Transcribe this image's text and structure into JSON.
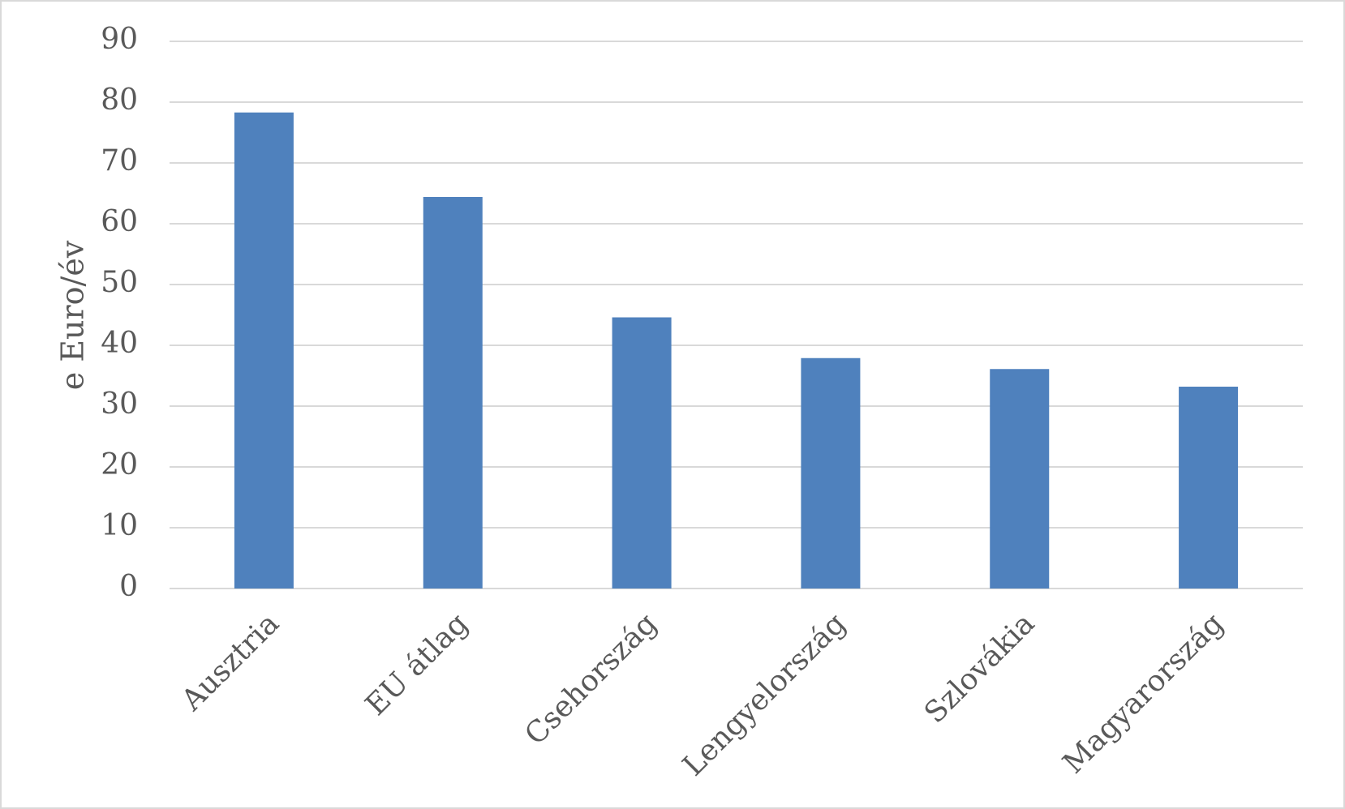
{
  "chart_data": {
    "type": "bar",
    "y_label": "e Euro/év",
    "categories": [
      "Ausztria",
      "EU átlag",
      "Csehország",
      "Lengyelország",
      "Szlovákia",
      "Magyarország"
    ],
    "values": [
      78.3,
      64.4,
      44.6,
      37.9,
      36.1,
      33.2
    ],
    "color": "#4f81bd",
    "ylim": [
      0,
      90
    ],
    "yticks": [
      0,
      10,
      20,
      30,
      40,
      50,
      60,
      70,
      80,
      90
    ],
    "grid": true
  }
}
